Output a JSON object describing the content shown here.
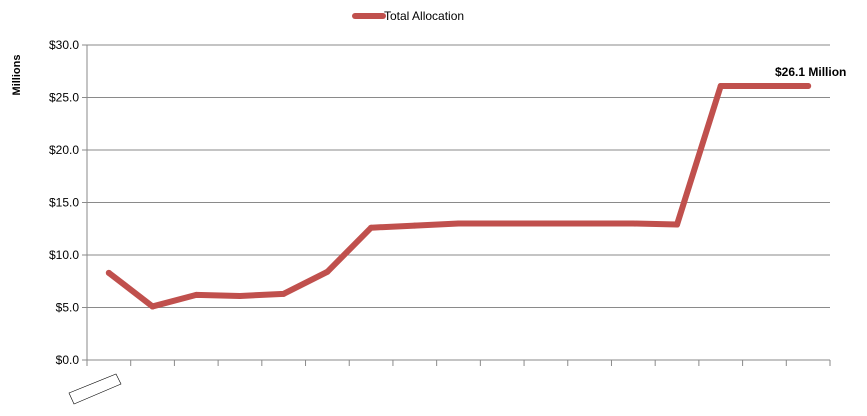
{
  "chart_data": {
    "type": "line",
    "title": "",
    "xlabel": "",
    "ylabel": "Millions",
    "ylim": [
      0,
      30
    ],
    "y_ticks": [
      "$0.0",
      "$5.0",
      "$10.0",
      "$15.0",
      "$20.0",
      "$25.0",
      "$30.0"
    ],
    "grid": true,
    "legend_position": "top",
    "categories": [
      "",
      "",
      "",
      "",
      "",
      "",
      "",
      "",
      "",
      "",
      "",
      "",
      "",
      "",
      "",
      "",
      ""
    ],
    "series": [
      {
        "name": "Total Allocation",
        "color": "#c0504d",
        "values": [
          8.3,
          5.1,
          6.2,
          6.1,
          6.3,
          8.4,
          12.6,
          12.8,
          13.0,
          13.0,
          13.0,
          13.0,
          13.0,
          12.9,
          26.1,
          26.1,
          26.1
        ]
      }
    ],
    "annotation": {
      "text": "$26.1 Million",
      "point_index": 16
    }
  }
}
